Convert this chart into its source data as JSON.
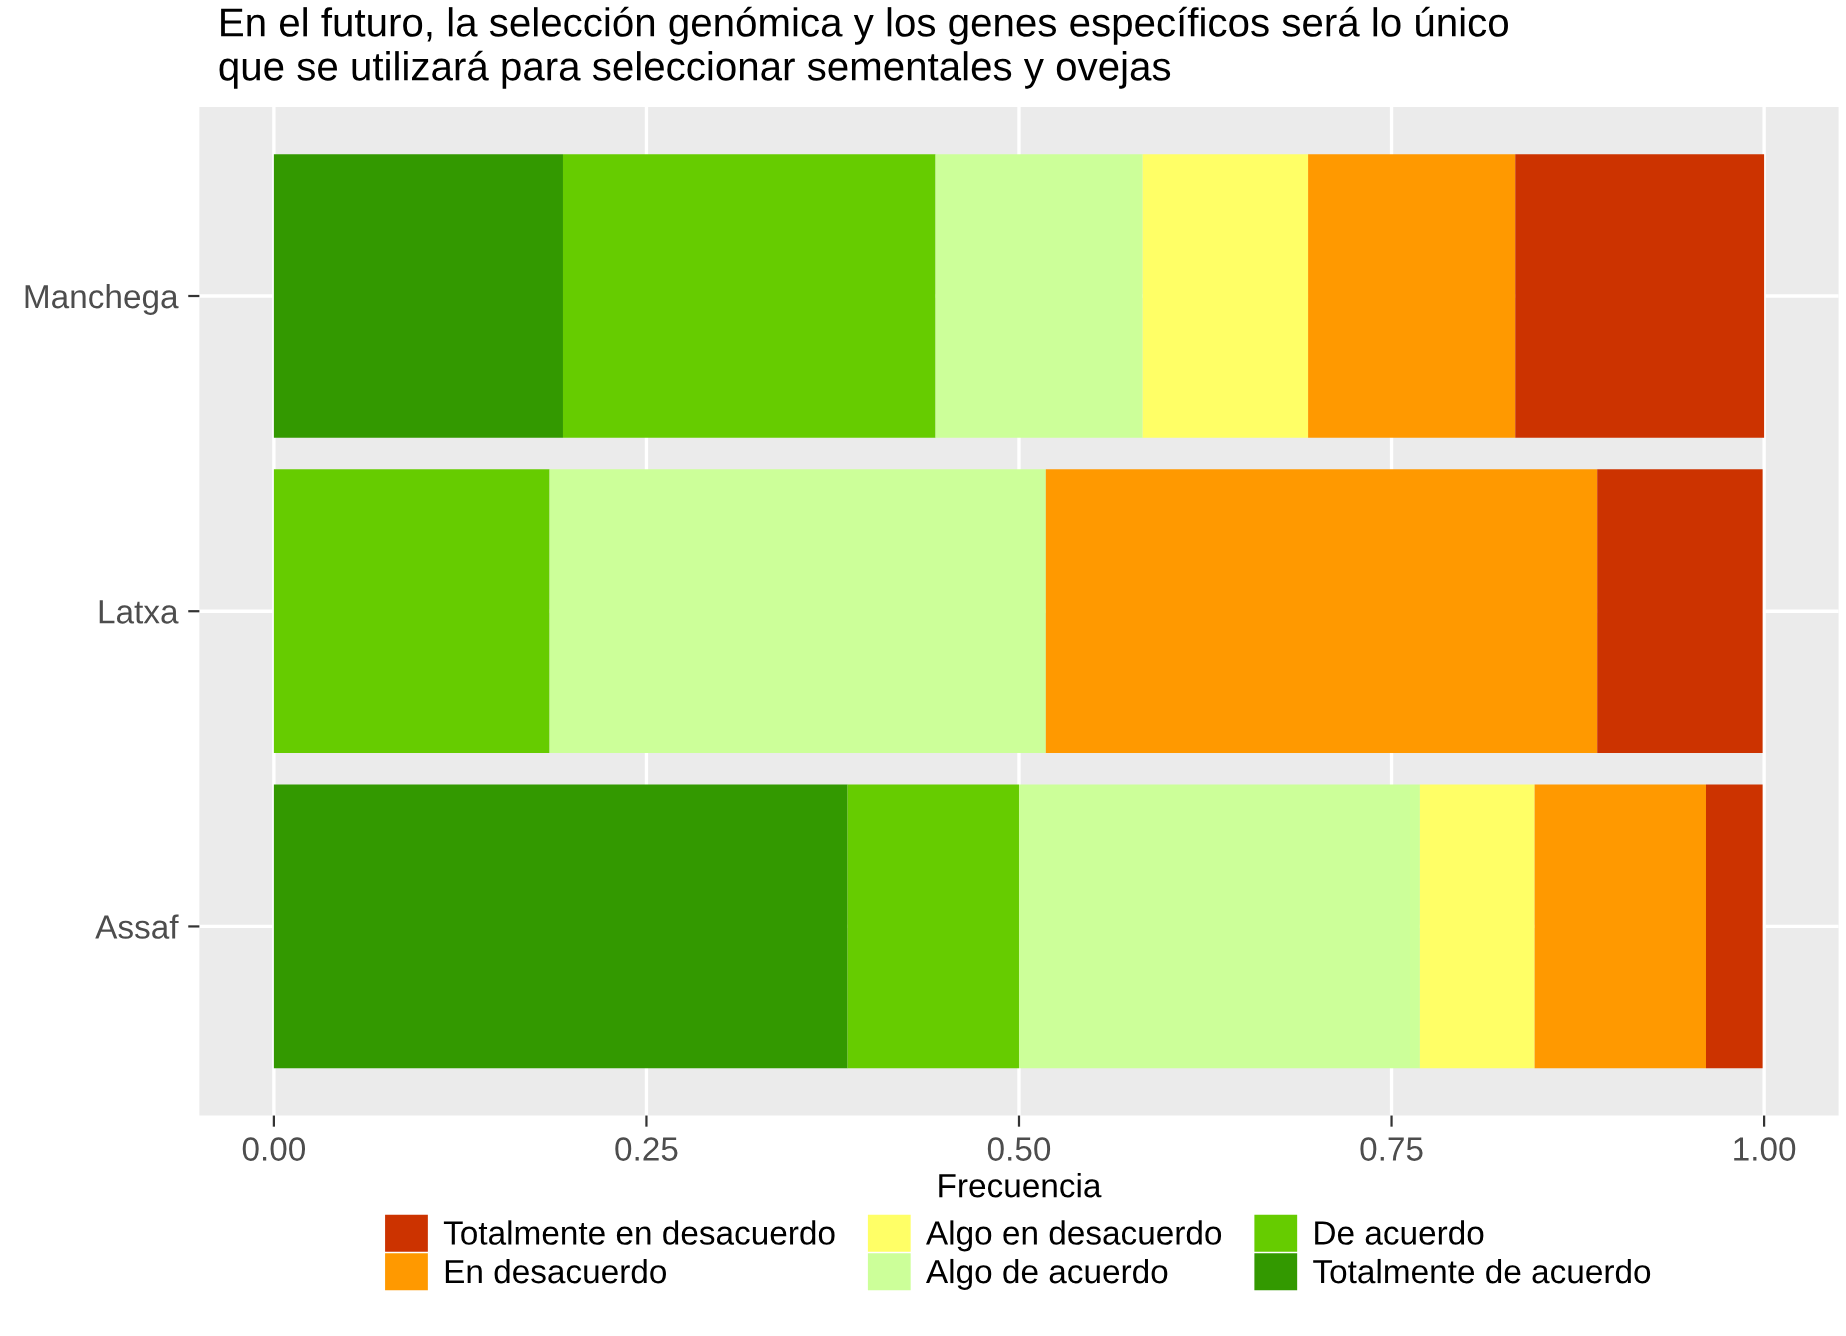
{
  "chart_data": {
    "type": "bar",
    "orientation": "horizontal",
    "stacked": true,
    "title": "En el futuro, la selección genómica y los genes específicos será lo único\nque se utilizará para seleccionar sementales y ovejas",
    "xlabel": "Frecuencia",
    "categories": [
      "Manchega",
      "Latxa",
      "Assaf"
    ],
    "series": [
      {
        "name": "Totalmente de acuerdo",
        "color": "#339900",
        "values": [
          0.194,
          0,
          0.385
        ]
      },
      {
        "name": "De acuerdo",
        "color": "#66cc00",
        "values": [
          0.25,
          0.185,
          0.115
        ]
      },
      {
        "name": "Algo de acuerdo",
        "color": "#ccff99",
        "values": [
          0.139,
          0.333,
          0.269
        ]
      },
      {
        "name": "Algo en desacuerdo",
        "color": "#ffff66",
        "values": [
          0.111,
          0,
          0.077
        ]
      },
      {
        "name": "En desacuerdo",
        "color": "#ff9900",
        "values": [
          0.139,
          0.37,
          0.115
        ]
      },
      {
        "name": "Totalmente en desacuerdo",
        "color": "#cc3300",
        "values": [
          0.167,
          0.111,
          0.038
        ]
      }
    ],
    "xlim": [
      -0.05,
      1.05
    ],
    "xticks": [
      {
        "value": 0,
        "label": "0.00"
      },
      {
        "value": 0.25,
        "label": "0.25"
      },
      {
        "value": 0.5,
        "label": "0.50"
      },
      {
        "value": 0.75,
        "label": "0.75"
      },
      {
        "value": 1,
        "label": "1.00"
      }
    ],
    "grid": true,
    "legend": "bottom"
  }
}
